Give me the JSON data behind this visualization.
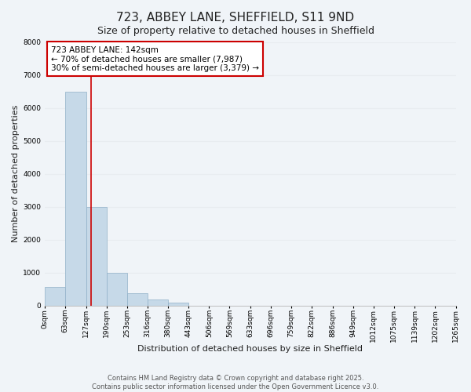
{
  "title": "723, ABBEY LANE, SHEFFIELD, S11 9ND",
  "subtitle": "Size of property relative to detached houses in Sheffield",
  "xlabel": "Distribution of detached houses by size in Sheffield",
  "ylabel": "Number of detached properties",
  "bar_values": [
    550,
    6480,
    2980,
    1000,
    380,
    175,
    75,
    0,
    0,
    0,
    0,
    0,
    0,
    0,
    0,
    0,
    0,
    0,
    0,
    0
  ],
  "bar_edges": [
    0,
    63,
    127,
    190,
    253,
    316,
    380,
    443,
    506,
    569,
    633,
    696,
    759,
    822,
    886,
    949,
    1012,
    1075,
    1139,
    1202,
    1265
  ],
  "x_tick_labels": [
    "0sqm",
    "63sqm",
    "127sqm",
    "190sqm",
    "253sqm",
    "316sqm",
    "380sqm",
    "443sqm",
    "506sqm",
    "569sqm",
    "633sqm",
    "696sqm",
    "759sqm",
    "822sqm",
    "886sqm",
    "949sqm",
    "1012sqm",
    "1075sqm",
    "1139sqm",
    "1202sqm",
    "1265sqm"
  ],
  "ylim": [
    0,
    8000
  ],
  "yticks": [
    0,
    1000,
    2000,
    3000,
    4000,
    5000,
    6000,
    7000,
    8000
  ],
  "bar_color": "#c6d9e8",
  "bar_edge_color": "#90b0c8",
  "vline_x": 142,
  "vline_color": "#cc0000",
  "annotation_line1": "723 ABBEY LANE: 142sqm",
  "annotation_line2": "← 70% of detached houses are smaller (7,987)",
  "annotation_line3": "30% of semi-detached houses are larger (3,379) →",
  "annotation_box_color": "#cc0000",
  "annotation_box_fill": "#ffffff",
  "annotation_fontsize": 7.5,
  "background_color": "#f0f4f8",
  "grid_color": "#e8ecf0",
  "footer_text": "Contains HM Land Registry data © Crown copyright and database right 2025.\nContains public sector information licensed under the Open Government Licence v3.0.",
  "title_fontsize": 11,
  "subtitle_fontsize": 9,
  "xlabel_fontsize": 8,
  "ylabel_fontsize": 8,
  "tick_fontsize": 6.5,
  "footer_fontsize": 6
}
